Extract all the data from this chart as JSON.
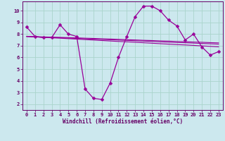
{
  "xlabel": "Windchill (Refroidissement éolien,°C)",
  "background_color": "#cce8ee",
  "grid_color": "#aad4cc",
  "line_color": "#990099",
  "x_ticks": [
    0,
    1,
    2,
    3,
    4,
    5,
    6,
    7,
    8,
    9,
    10,
    11,
    12,
    13,
    14,
    15,
    16,
    17,
    18,
    19,
    20,
    21,
    22,
    23
  ],
  "y_ticks": [
    2,
    3,
    4,
    5,
    6,
    7,
    8,
    9,
    10
  ],
  "xlim": [
    -0.5,
    23.5
  ],
  "ylim": [
    1.5,
    10.8
  ],
  "series": [
    [
      8.6,
      7.8,
      7.7,
      7.7,
      8.8,
      8.0,
      7.8,
      3.3,
      2.5,
      2.4,
      3.8,
      6.0,
      7.8,
      9.5,
      10.4,
      10.4,
      10.0,
      9.2,
      8.7,
      7.5,
      8.0,
      6.9,
      6.2,
      6.5
    ],
    [
      7.8,
      7.78,
      7.76,
      7.74,
      7.72,
      7.7,
      7.68,
      7.65,
      7.63,
      7.6,
      7.58,
      7.55,
      7.52,
      7.5,
      7.47,
      7.45,
      7.42,
      7.4,
      7.37,
      7.35,
      7.32,
      7.3,
      7.27,
      7.25
    ],
    [
      7.8,
      7.77,
      7.74,
      7.71,
      7.69,
      7.66,
      7.63,
      7.6,
      7.57,
      7.54,
      7.51,
      7.49,
      7.46,
      7.43,
      7.4,
      7.37,
      7.34,
      7.31,
      7.28,
      7.26,
      7.23,
      7.2,
      7.17,
      7.14
    ],
    [
      7.8,
      7.76,
      7.72,
      7.68,
      7.65,
      7.61,
      7.57,
      7.53,
      7.49,
      7.45,
      7.41,
      7.37,
      7.34,
      7.3,
      7.26,
      7.22,
      7.18,
      7.14,
      7.1,
      7.07,
      7.03,
      6.99,
      6.95,
      6.91
    ]
  ],
  "marker": "D",
  "markersize": 2.5,
  "tick_fontsize": 5,
  "xlabel_fontsize": 5.5
}
